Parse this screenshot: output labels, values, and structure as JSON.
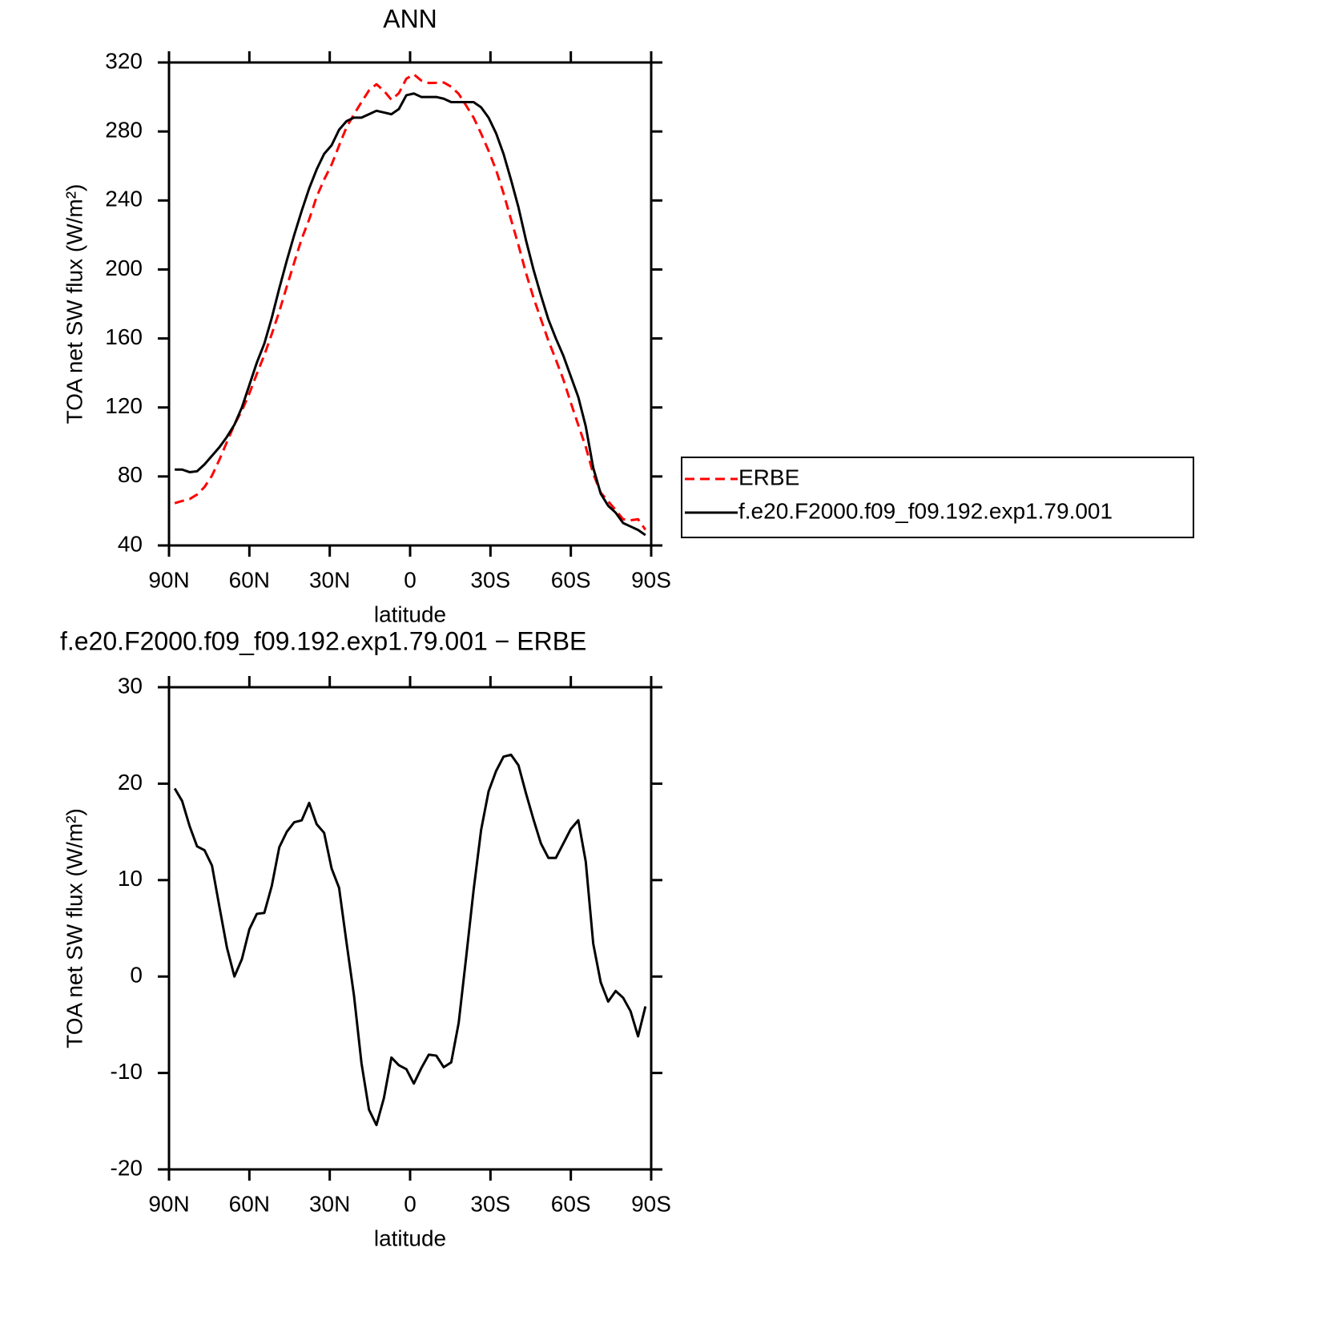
{
  "chart_data": [
    {
      "type": "line",
      "title": "ANN",
      "xlabel": "latitude",
      "ylabel": "TOA net SW flux (W/m²)",
      "x": [
        87.86,
        85.1,
        82.31,
        79.53,
        76.74,
        73.95,
        71.16,
        68.37,
        65.58,
        62.79,
        60,
        57.21,
        54.42,
        51.63,
        48.84,
        46.05,
        43.26,
        40.46,
        37.67,
        34.88,
        32.09,
        29.3,
        26.51,
        23.72,
        20.93,
        18.14,
        15.35,
        12.56,
        9.77,
        6.98,
        4.19,
        1.4,
        -1.4,
        -4.19,
        -6.98,
        -9.77,
        -12.56,
        -15.35,
        -18.14,
        -20.93,
        -23.72,
        -26.51,
        -29.3,
        -32.09,
        -34.88,
        -37.67,
        -40.46,
        -43.26,
        -46.05,
        -48.84,
        -51.63,
        -54.42,
        -57.21,
        -60,
        -62.79,
        -65.58,
        -68.37,
        -71.16,
        -73.95,
        -76.74,
        -79.53,
        -82.31,
        -85.1,
        -87.86
      ],
      "xlim": [
        90,
        -90
      ],
      "xticks": [
        {
          "value": 90,
          "label": "90N"
        },
        {
          "value": 60,
          "label": "60N"
        },
        {
          "value": 30,
          "label": "30N"
        },
        0,
        {
          "value": -30,
          "label": "30S"
        },
        {
          "value": -60,
          "label": "60S"
        },
        {
          "value": -90,
          "label": "90S"
        }
      ],
      "ylim": [
        40,
        320
      ],
      "yticks": [
        40,
        80,
        120,
        160,
        200,
        240,
        280,
        320
      ],
      "legend": "right",
      "series": [
        {
          "name": "ERBE",
          "color": "#ff0000",
          "line_style": "dashed",
          "values": [
            64.5,
            65.8,
            66.9,
            69.5,
            73.9,
            80.5,
            89.8,
            100,
            110,
            118.2,
            128.1,
            139.5,
            150.4,
            162.6,
            175.6,
            190,
            204,
            217.8,
            229,
            242.2,
            252.1,
            260.8,
            271.8,
            282.5,
            290,
            297,
            303.8,
            307.4,
            303.6,
            298.4,
            302.2,
            310.6,
            313.1,
            309.5,
            308.1,
            308.2,
            308.4,
            305.9,
            301.8,
            295,
            288,
            278.8,
            268.8,
            257.7,
            244.2,
            229,
            214.1,
            198,
            183.7,
            171.2,
            158.7,
            147.7,
            136.2,
            122.7,
            109.8,
            97.1,
            81.6,
            70.6,
            65.6,
            60.5,
            55.2,
            54.6,
            55.2,
            49.1
          ]
        },
        {
          "name": "f.e20.F2000.f09_f09.192.exp1.79.001",
          "color": "#000000",
          "line_style": "solid",
          "values": [
            84,
            84,
            82.5,
            83,
            87,
            92,
            97,
            103,
            110,
            120,
            133,
            146,
            157,
            172,
            189,
            205,
            220,
            234,
            247,
            258,
            267,
            272,
            281,
            286,
            288,
            288,
            290,
            292,
            291,
            290,
            293,
            301,
            302,
            300,
            300,
            300,
            299,
            297,
            297,
            297,
            297,
            294,
            288,
            279,
            267,
            252,
            236,
            217,
            200,
            185,
            171,
            160,
            150,
            138,
            126,
            109,
            85,
            70,
            63,
            59,
            53,
            51,
            49,
            46
          ]
        }
      ]
    },
    {
      "type": "line",
      "title": "f.e20.F2000.f09_f09.192.exp1.79.001 − ERBE",
      "xlabel": "latitude",
      "ylabel": "TOA net SW flux (W/m²)",
      "x": [
        87.86,
        85.1,
        82.31,
        79.53,
        76.74,
        73.95,
        71.16,
        68.37,
        65.58,
        62.79,
        60,
        57.21,
        54.42,
        51.63,
        48.84,
        46.05,
        43.26,
        40.46,
        37.67,
        34.88,
        32.09,
        29.3,
        26.51,
        23.72,
        20.93,
        18.14,
        15.35,
        12.56,
        9.77,
        6.98,
        4.19,
        1.4,
        -1.4,
        -4.19,
        -6.98,
        -9.77,
        -12.56,
        -15.35,
        -18.14,
        -20.93,
        -23.72,
        -26.51,
        -29.3,
        -32.09,
        -34.88,
        -37.67,
        -40.46,
        -43.26,
        -46.05,
        -48.84,
        -51.63,
        -54.42,
        -57.21,
        -60,
        -62.79,
        -65.58,
        -68.37,
        -71.16,
        -73.95,
        -76.74,
        -79.53,
        -82.31,
        -85.1,
        -87.86
      ],
      "xlim": [
        90,
        -90
      ],
      "xticks": [
        {
          "value": 90,
          "label": "90N"
        },
        {
          "value": 60,
          "label": "60N"
        },
        {
          "value": 30,
          "label": "30N"
        },
        0,
        {
          "value": -30,
          "label": "30S"
        },
        {
          "value": -60,
          "label": "60S"
        },
        {
          "value": -90,
          "label": "90S"
        }
      ],
      "ylim": [
        -20,
        30
      ],
      "yticks": [
        -20,
        -10,
        0,
        10,
        20,
        30
      ],
      "color": "#000000",
      "values": [
        19.5,
        18.2,
        15.6,
        13.5,
        13.1,
        11.5,
        7.2,
        3,
        0,
        1.8,
        4.9,
        6.5,
        6.6,
        9.4,
        13.4,
        15,
        16,
        16.2,
        18,
        15.8,
        14.9,
        11.2,
        9.2,
        3.5,
        -2,
        -9,
        -13.8,
        -15.4,
        -12.6,
        -8.4,
        -9.2,
        -9.6,
        -11.1,
        -9.5,
        -8.1,
        -8.2,
        -9.4,
        -8.9,
        -4.8,
        2,
        9,
        15.2,
        19.2,
        21.3,
        22.8,
        23,
        21.9,
        19,
        16.3,
        13.8,
        12.3,
        12.3,
        13.8,
        15.3,
        16.2,
        11.9,
        3.4,
        -0.6,
        -2.6,
        -1.5,
        -2.2,
        -3.6,
        -6.2,
        -3.1
      ]
    }
  ]
}
